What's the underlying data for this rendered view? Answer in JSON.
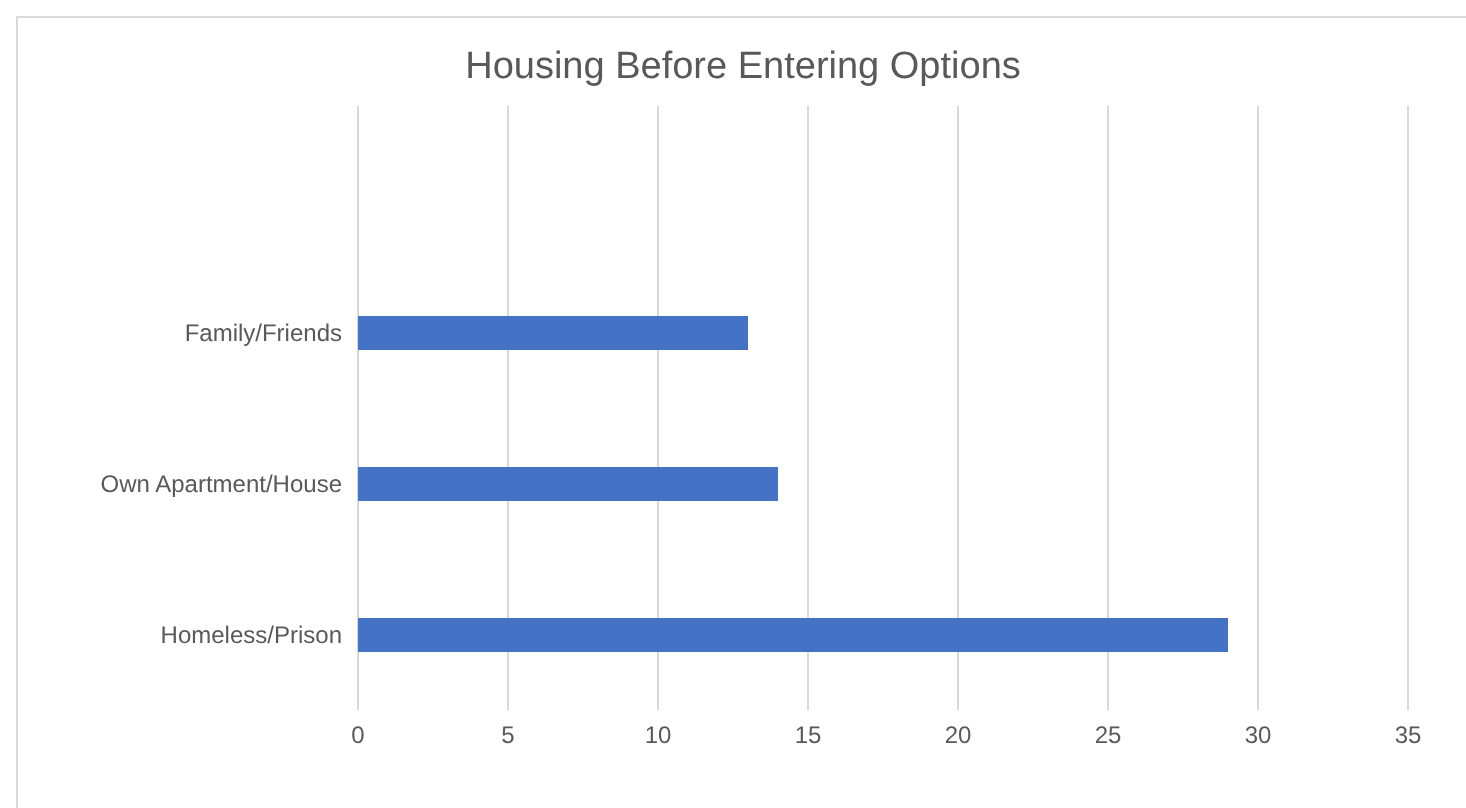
{
  "chart_data": {
    "type": "bar",
    "orientation": "horizontal",
    "title": "Housing Before Entering Options",
    "categories": [
      null,
      "Family/Friends",
      "Own Apartment/House",
      "Homeless/Prison"
    ],
    "values": [
      null,
      13,
      14,
      29
    ],
    "color": "#4472c4",
    "xlim": [
      0,
      35
    ],
    "xticks": [
      0,
      5,
      10,
      15,
      20,
      25,
      30,
      35
    ],
    "grid": "x"
  }
}
